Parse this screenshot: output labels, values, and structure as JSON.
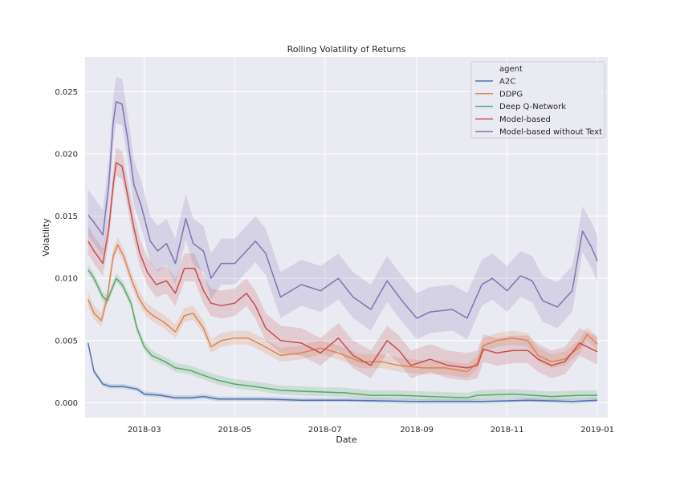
{
  "chart_data": {
    "type": "line",
    "title": "Rolling Volatility of Returns",
    "xlabel": "Date",
    "ylabel": "Volatility",
    "xlim": [
      "2018-01-20",
      "2019-01-08"
    ],
    "ylim": [
      -0.0012,
      0.0278
    ],
    "x_ticks": [
      "2018-03",
      "2018-05",
      "2018-07",
      "2018-09",
      "2018-11",
      "2019-01"
    ],
    "y_ticks": [
      "0.000",
      "0.005",
      "0.010",
      "0.015",
      "0.020",
      "0.025"
    ],
    "grid": true,
    "legend": {
      "title": "agent",
      "placement": "top-right"
    },
    "series": [
      {
        "name": "A2C",
        "color": "#4c72b0",
        "points": [
          [
            "2018-01-22",
            0.0048
          ],
          [
            "2018-01-26",
            0.0025
          ],
          [
            "2018-02-01",
            0.0015
          ],
          [
            "2018-02-06",
            0.0013
          ],
          [
            "2018-02-15",
            0.0013
          ],
          [
            "2018-02-24",
            0.0011
          ],
          [
            "2018-03-01",
            0.0007
          ],
          [
            "2018-03-12",
            0.0006
          ],
          [
            "2018-03-22",
            0.0004
          ],
          [
            "2018-04-01",
            0.0004
          ],
          [
            "2018-04-10",
            0.0005
          ],
          [
            "2018-04-20",
            0.0003
          ],
          [
            "2018-05-20",
            0.0003
          ],
          [
            "2018-06-15",
            0.0002
          ],
          [
            "2018-07-15",
            0.0002
          ],
          [
            "2018-09-01",
            0.0001
          ],
          [
            "2018-10-15",
            0.0001
          ],
          [
            "2018-11-15",
            0.0002
          ],
          [
            "2018-12-15",
            0.0001
          ],
          [
            "2019-01-01",
            0.0002
          ]
        ],
        "band": 0.0002
      },
      {
        "name": "DDPG",
        "color": "#dd8452",
        "points": [
          [
            "2018-01-22",
            0.0083
          ],
          [
            "2018-01-26",
            0.0072
          ],
          [
            "2018-01-31",
            0.0066
          ],
          [
            "2018-02-04",
            0.0085
          ],
          [
            "2018-02-08",
            0.0118
          ],
          [
            "2018-02-11",
            0.0127
          ],
          [
            "2018-02-15",
            0.0118
          ],
          [
            "2018-02-20",
            0.01
          ],
          [
            "2018-02-25",
            0.0085
          ],
          [
            "2018-03-02",
            0.0075
          ],
          [
            "2018-03-07",
            0.007
          ],
          [
            "2018-03-14",
            0.0065
          ],
          [
            "2018-03-22",
            0.0057
          ],
          [
            "2018-03-28",
            0.007
          ],
          [
            "2018-04-03",
            0.0072
          ],
          [
            "2018-04-10",
            0.006
          ],
          [
            "2018-04-15",
            0.0045
          ],
          [
            "2018-04-22",
            0.005
          ],
          [
            "2018-05-01",
            0.0052
          ],
          [
            "2018-05-10",
            0.0052
          ],
          [
            "2018-05-20",
            0.0046
          ],
          [
            "2018-06-01",
            0.0038
          ],
          [
            "2018-06-15",
            0.004
          ],
          [
            "2018-06-28",
            0.0044
          ],
          [
            "2018-07-10",
            0.004
          ],
          [
            "2018-07-25",
            0.0033
          ],
          [
            "2018-08-08",
            0.0033
          ],
          [
            "2018-08-20",
            0.003
          ],
          [
            "2018-09-05",
            0.0028
          ],
          [
            "2018-09-20",
            0.0028
          ],
          [
            "2018-10-05",
            0.0025
          ],
          [
            "2018-10-12",
            0.0032
          ],
          [
            "2018-10-16",
            0.0046
          ],
          [
            "2018-10-25",
            0.005
          ],
          [
            "2018-11-05",
            0.0052
          ],
          [
            "2018-11-15",
            0.005
          ],
          [
            "2018-11-22",
            0.0038
          ],
          [
            "2018-12-01",
            0.0033
          ],
          [
            "2018-12-10",
            0.0035
          ],
          [
            "2018-12-20",
            0.0045
          ],
          [
            "2018-12-25",
            0.0055
          ],
          [
            "2019-01-01",
            0.0047
          ]
        ],
        "band": 0.0006
      },
      {
        "name": "Deep Q-Network",
        "color": "#55a868",
        "points": [
          [
            "2018-01-22",
            0.0107
          ],
          [
            "2018-01-26",
            0.01
          ],
          [
            "2018-02-01",
            0.0085
          ],
          [
            "2018-02-04",
            0.0082
          ],
          [
            "2018-02-10",
            0.01
          ],
          [
            "2018-02-14",
            0.0095
          ],
          [
            "2018-02-20",
            0.008
          ],
          [
            "2018-02-24",
            0.006
          ],
          [
            "2018-03-01",
            0.0045
          ],
          [
            "2018-03-06",
            0.0038
          ],
          [
            "2018-03-15",
            0.0033
          ],
          [
            "2018-03-22",
            0.0028
          ],
          [
            "2018-04-01",
            0.0026
          ],
          [
            "2018-04-10",
            0.0022
          ],
          [
            "2018-04-20",
            0.0018
          ],
          [
            "2018-05-01",
            0.0015
          ],
          [
            "2018-05-15",
            0.0013
          ],
          [
            "2018-06-01",
            0.001
          ],
          [
            "2018-06-20",
            0.0009
          ],
          [
            "2018-07-15",
            0.0008
          ],
          [
            "2018-08-01",
            0.0006
          ],
          [
            "2018-08-20",
            0.0006
          ],
          [
            "2018-09-10",
            0.0005
          ],
          [
            "2018-10-05",
            0.0004
          ],
          [
            "2018-10-12",
            0.0006
          ],
          [
            "2018-11-05",
            0.0007
          ],
          [
            "2018-12-01",
            0.0005
          ],
          [
            "2018-12-20",
            0.0006
          ],
          [
            "2019-01-01",
            0.0006
          ]
        ],
        "band": 0.0004
      },
      {
        "name": "Model-based",
        "color": "#c44e52",
        "points": [
          [
            "2018-01-22",
            0.013
          ],
          [
            "2018-01-26",
            0.0122
          ],
          [
            "2018-02-01",
            0.0112
          ],
          [
            "2018-02-05",
            0.014
          ],
          [
            "2018-02-08",
            0.0175
          ],
          [
            "2018-02-10",
            0.0193
          ],
          [
            "2018-02-14",
            0.019
          ],
          [
            "2018-02-18",
            0.0165
          ],
          [
            "2018-02-22",
            0.014
          ],
          [
            "2018-02-26",
            0.012
          ],
          [
            "2018-03-03",
            0.0105
          ],
          [
            "2018-03-09",
            0.0095
          ],
          [
            "2018-03-16",
            0.0098
          ],
          [
            "2018-03-22",
            0.0088
          ],
          [
            "2018-03-28",
            0.0108
          ],
          [
            "2018-04-04",
            0.0108
          ],
          [
            "2018-04-10",
            0.009
          ],
          [
            "2018-04-15",
            0.008
          ],
          [
            "2018-04-22",
            0.0078
          ],
          [
            "2018-05-01",
            0.008
          ],
          [
            "2018-05-09",
            0.0088
          ],
          [
            "2018-05-15",
            0.0078
          ],
          [
            "2018-05-22",
            0.006
          ],
          [
            "2018-06-01",
            0.005
          ],
          [
            "2018-06-15",
            0.0048
          ],
          [
            "2018-06-28",
            0.004
          ],
          [
            "2018-07-10",
            0.0052
          ],
          [
            "2018-07-20",
            0.0038
          ],
          [
            "2018-08-01",
            0.003
          ],
          [
            "2018-08-12",
            0.005
          ],
          [
            "2018-08-20",
            0.0042
          ],
          [
            "2018-08-28",
            0.003
          ],
          [
            "2018-09-10",
            0.0035
          ],
          [
            "2018-09-22",
            0.003
          ],
          [
            "2018-10-05",
            0.0028
          ],
          [
            "2018-10-12",
            0.003
          ],
          [
            "2018-10-16",
            0.0043
          ],
          [
            "2018-10-25",
            0.004
          ],
          [
            "2018-11-05",
            0.0042
          ],
          [
            "2018-11-15",
            0.0042
          ],
          [
            "2018-11-22",
            0.0035
          ],
          [
            "2018-12-01",
            0.003
          ],
          [
            "2018-12-10",
            0.0033
          ],
          [
            "2018-12-20",
            0.0048
          ],
          [
            "2019-01-01",
            0.0041
          ]
        ],
        "band": 0.0012
      },
      {
        "name": "Model-based without Text",
        "color": "#8172b3",
        "points": [
          [
            "2018-01-22",
            0.0151
          ],
          [
            "2018-01-26",
            0.0145
          ],
          [
            "2018-02-01",
            0.0135
          ],
          [
            "2018-02-05",
            0.0175
          ],
          [
            "2018-02-08",
            0.0225
          ],
          [
            "2018-02-10",
            0.0242
          ],
          [
            "2018-02-14",
            0.024
          ],
          [
            "2018-02-18",
            0.021
          ],
          [
            "2018-02-22",
            0.0175
          ],
          [
            "2018-02-27",
            0.0158
          ],
          [
            "2018-03-05",
            0.013
          ],
          [
            "2018-03-10",
            0.0122
          ],
          [
            "2018-03-16",
            0.0128
          ],
          [
            "2018-03-22",
            0.0112
          ],
          [
            "2018-03-29",
            0.0148
          ],
          [
            "2018-04-03",
            0.0128
          ],
          [
            "2018-04-10",
            0.0122
          ],
          [
            "2018-04-15",
            0.01
          ],
          [
            "2018-04-22",
            0.0112
          ],
          [
            "2018-05-01",
            0.0112
          ],
          [
            "2018-05-09",
            0.0122
          ],
          [
            "2018-05-15",
            0.013
          ],
          [
            "2018-05-22",
            0.012
          ],
          [
            "2018-06-01",
            0.0085
          ],
          [
            "2018-06-15",
            0.0095
          ],
          [
            "2018-06-28",
            0.009
          ],
          [
            "2018-07-10",
            0.01
          ],
          [
            "2018-07-20",
            0.0085
          ],
          [
            "2018-08-01",
            0.0075
          ],
          [
            "2018-08-12",
            0.0098
          ],
          [
            "2018-08-22",
            0.0082
          ],
          [
            "2018-09-01",
            0.0068
          ],
          [
            "2018-09-10",
            0.0073
          ],
          [
            "2018-09-25",
            0.0075
          ],
          [
            "2018-10-05",
            0.0068
          ],
          [
            "2018-10-15",
            0.0095
          ],
          [
            "2018-10-22",
            0.01
          ],
          [
            "2018-11-01",
            0.009
          ],
          [
            "2018-11-10",
            0.0102
          ],
          [
            "2018-11-18",
            0.0098
          ],
          [
            "2018-11-25",
            0.0082
          ],
          [
            "2018-12-05",
            0.0077
          ],
          [
            "2018-12-15",
            0.009
          ],
          [
            "2018-12-22",
            0.0138
          ],
          [
            "2018-12-28",
            0.0125
          ],
          [
            "2019-01-01",
            0.0114
          ]
        ],
        "band": 0.002
      }
    ]
  }
}
